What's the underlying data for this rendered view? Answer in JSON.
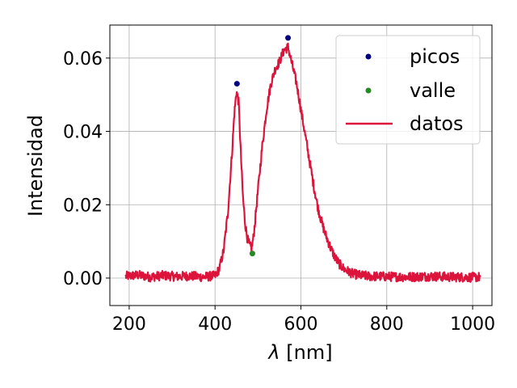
{
  "chart_data": {
    "type": "line",
    "xlabel_symbol": "λ",
    "xlabel_unit": "[nm]",
    "ylabel": "Intensidad",
    "xlim": [
      155,
      1045
    ],
    "ylim": [
      -0.0075,
      0.069
    ],
    "xticks": [
      200,
      400,
      600,
      800,
      1000
    ],
    "xtick_labels": [
      "200",
      "400",
      "600",
      "800",
      "1000"
    ],
    "yticks": [
      0.0,
      0.02,
      0.04,
      0.06
    ],
    "ytick_labels": [
      "0.00",
      "0.02",
      "0.04",
      "0.06"
    ],
    "grid": true,
    "legend_position": "top-right",
    "series": [
      {
        "name": "datos",
        "kind": "line",
        "color": "#dc143c",
        "x": [
          192,
          220,
          250,
          280,
          310,
          340,
          370,
          400,
          410,
          420,
          430,
          440,
          445,
          450,
          455,
          460,
          465,
          470,
          475,
          480,
          485,
          490,
          500,
          510,
          520,
          530,
          540,
          550,
          560,
          570,
          580,
          590,
          600,
          610,
          620,
          630,
          640,
          650,
          660,
          670,
          680,
          690,
          700,
          720,
          740,
          760,
          800,
          850,
          900,
          950,
          1000,
          1018
        ],
        "y": [
          0.0005,
          0.0008,
          0.0003,
          0.0007,
          0.0004,
          0.0006,
          0.0003,
          0.0006,
          0.0025,
          0.0075,
          0.018,
          0.035,
          0.045,
          0.051,
          0.048,
          0.034,
          0.022,
          0.015,
          0.011,
          0.009,
          0.008,
          0.0115,
          0.024,
          0.036,
          0.046,
          0.053,
          0.057,
          0.059,
          0.062,
          0.063,
          0.058,
          0.053,
          0.046,
          0.039,
          0.032,
          0.025,
          0.019,
          0.0145,
          0.011,
          0.008,
          0.0055,
          0.0038,
          0.0025,
          0.0012,
          0.0007,
          0.0005,
          0.0004,
          0.0003,
          0.0005,
          0.0003,
          0.0002,
          0.0003
        ]
      },
      {
        "name": "picos",
        "kind": "scatter",
        "color": "#000080",
        "x": [
          451,
          570
        ],
        "y": [
          0.053,
          0.0655
        ]
      },
      {
        "name": "valle",
        "kind": "scatter",
        "color": "#228b22",
        "x": [
          487
        ],
        "y": [
          0.0067
        ]
      }
    ],
    "legend": [
      "picos",
      "valle",
      "datos"
    ]
  }
}
